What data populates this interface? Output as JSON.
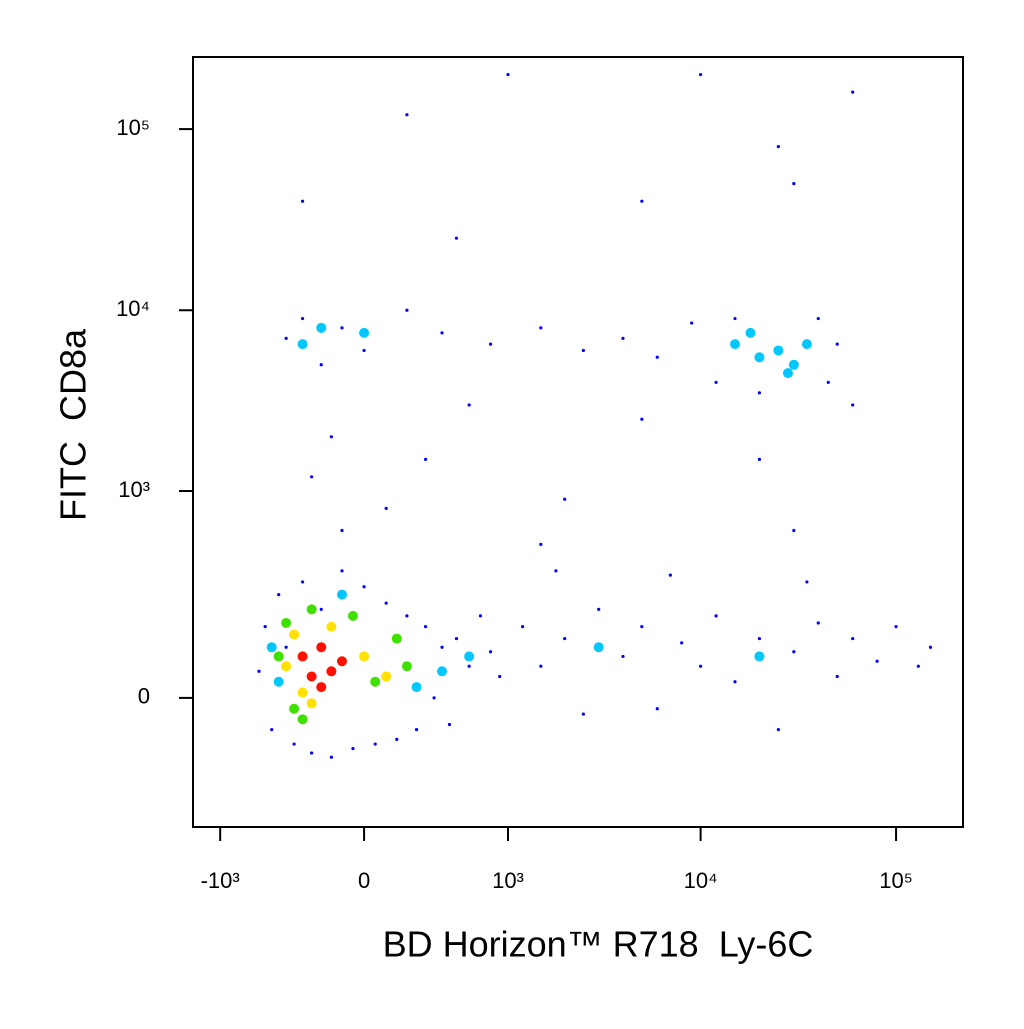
{
  "chart_data": {
    "type": "scatter",
    "x_label": "BD Horizon™ R718  Ly-6C",
    "y_label": "FITC  CD8a",
    "xscale": "biexponential",
    "yscale": "biexponential",
    "xlim": [
      -1400,
      220000
    ],
    "ylim": [
      -360,
      250000
    ],
    "xticks": [
      {
        "value": -1000,
        "label": "-10³"
      },
      0,
      {
        "value": 1000,
        "label": "10³"
      },
      {
        "value": 10000,
        "label": "10⁴"
      },
      {
        "value": 100000,
        "label": "10⁵"
      }
    ],
    "yticks": [
      0,
      {
        "value": 1000,
        "label": "10³"
      },
      {
        "value": 10000,
        "label": "10⁴"
      },
      {
        "value": 100000,
        "label": "10⁵"
      }
    ],
    "series": [
      {
        "color": "#0000ff",
        "x": [
          -600,
          -550,
          -500,
          -450,
          -400,
          -350,
          -300,
          -250,
          -200,
          -150,
          -100,
          -50,
          0,
          50,
          100,
          150,
          200,
          250,
          300,
          350,
          400,
          450,
          500,
          600,
          700,
          800,
          900,
          1200,
          1500,
          2000,
          2500,
          3000,
          4000,
          5000,
          6000,
          8000,
          10000,
          12000,
          15000,
          20000,
          25000,
          30000,
          40000,
          50000,
          60000,
          80000,
          100000,
          130000,
          150000,
          1800,
          7000,
          35000,
          -250,
          -150,
          100,
          300,
          600,
          2000,
          5000,
          20000,
          60000,
          -100,
          1500,
          30000,
          -400,
          -300,
          -200,
          -100,
          0,
          200,
          400,
          800,
          1500,
          2500,
          4000,
          6000,
          9000,
          12000,
          15000,
          40000,
          50000,
          45000,
          20000,
          -300,
          200,
          1000,
          5000,
          10000,
          25000,
          60000,
          500,
          30000
        ],
        "values": [
          50,
          150,
          -60,
          250,
          100,
          -90,
          300,
          -110,
          200,
          -120,
          350,
          -100,
          280,
          -90,
          220,
          -80,
          180,
          -60,
          150,
          0,
          100,
          -50,
          120,
          60,
          180,
          90,
          40,
          150,
          60,
          120,
          -30,
          200,
          80,
          150,
          -20,
          110,
          60,
          180,
          30,
          120,
          -60,
          90,
          160,
          40,
          120,
          70,
          150,
          60,
          100,
          350,
          330,
          300,
          1200,
          2000,
          800,
          1500,
          3000,
          900,
          2500,
          1500,
          3000,
          600,
          500,
          600,
          7000,
          9000,
          5000,
          8000,
          6000,
          10000,
          7500,
          6500,
          8000,
          6000,
          7000,
          5500,
          8500,
          4000,
          9000,
          9000,
          6500,
          4000,
          3500,
          40000,
          120000,
          200000,
          40000,
          200000,
          80000,
          160000,
          25000,
          50000
        ]
      },
      {
        "color": "#00c8ff",
        "x": [
          -500,
          -450,
          -100,
          250,
          400,
          600,
          -200,
          0,
          -300,
          15000,
          20000,
          25000,
          30000,
          35000,
          18000,
          28000,
          3000,
          20000
        ],
        "values": [
          100,
          30,
          250,
          20,
          50,
          80,
          8000,
          7500,
          6500,
          6500,
          5500,
          6000,
          5000,
          6500,
          7500,
          4500,
          100,
          80
        ]
      },
      {
        "color": "#40e000",
        "x": [
          -450,
          -400,
          -350,
          -250,
          -50,
          50,
          150,
          200,
          -300
        ],
        "values": [
          80,
          160,
          -20,
          200,
          180,
          30,
          120,
          60,
          -40
        ]
      },
      {
        "color": "#ffe000",
        "x": [
          -400,
          -350,
          -300,
          -150,
          0,
          100,
          -250
        ],
        "values": [
          60,
          130,
          10,
          150,
          80,
          40,
          -10
        ]
      },
      {
        "color": "#ff1000",
        "x": [
          -300,
          -250,
          -200,
          -150,
          -100,
          -200
        ],
        "values": [
          80,
          40,
          100,
          50,
          70,
          20
        ]
      }
    ]
  }
}
